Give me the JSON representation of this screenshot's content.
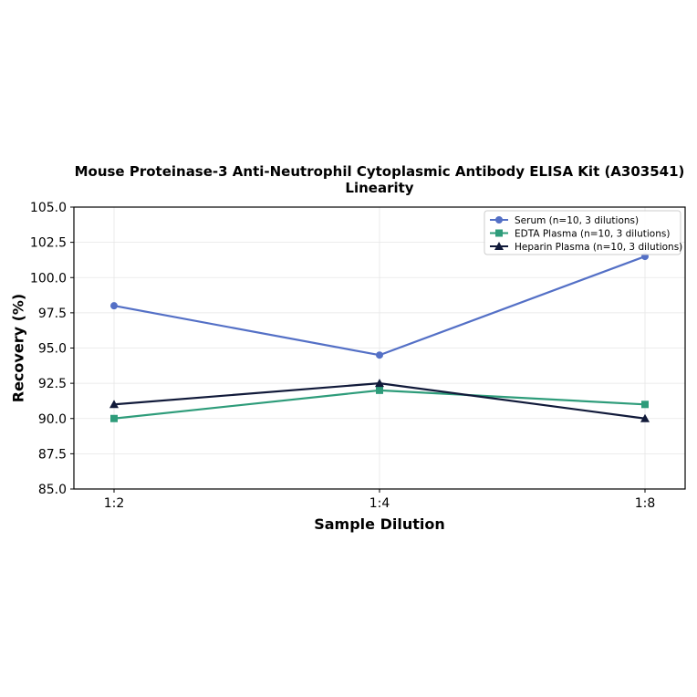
{
  "chart_data": {
    "type": "line",
    "title_lines": [
      "Mouse Proteinase-3 Anti-Neutrophil Cytoplasmic Antibody ELISA Kit (A303541)",
      "Linearity"
    ],
    "xlabel": "Sample Dilution",
    "ylabel": "Recovery (%)",
    "categories": [
      "1:2",
      "1:4",
      "1:8"
    ],
    "ylim": [
      85.0,
      105.0
    ],
    "yticks": [
      "85.0",
      "87.5",
      "90.0",
      "92.5",
      "95.0",
      "97.5",
      "100.0",
      "102.5",
      "105.0"
    ],
    "grid": true,
    "legend_position": "top-right",
    "series": [
      {
        "name": "Serum (n=10, 3 dilutions)",
        "values": [
          98.0,
          94.5,
          101.5
        ],
        "color": "#5470c6",
        "marker": "circle"
      },
      {
        "name": "EDTA Plasma (n=10, 3 dilutions)",
        "values": [
          90.0,
          92.0,
          91.0
        ],
        "color": "#2e9c7a",
        "marker": "square"
      },
      {
        "name": "Heparin Plasma (n=10, 3 dilutions)",
        "values": [
          91.0,
          92.5,
          90.0
        ],
        "color": "#111a3a",
        "marker": "triangle"
      }
    ]
  }
}
